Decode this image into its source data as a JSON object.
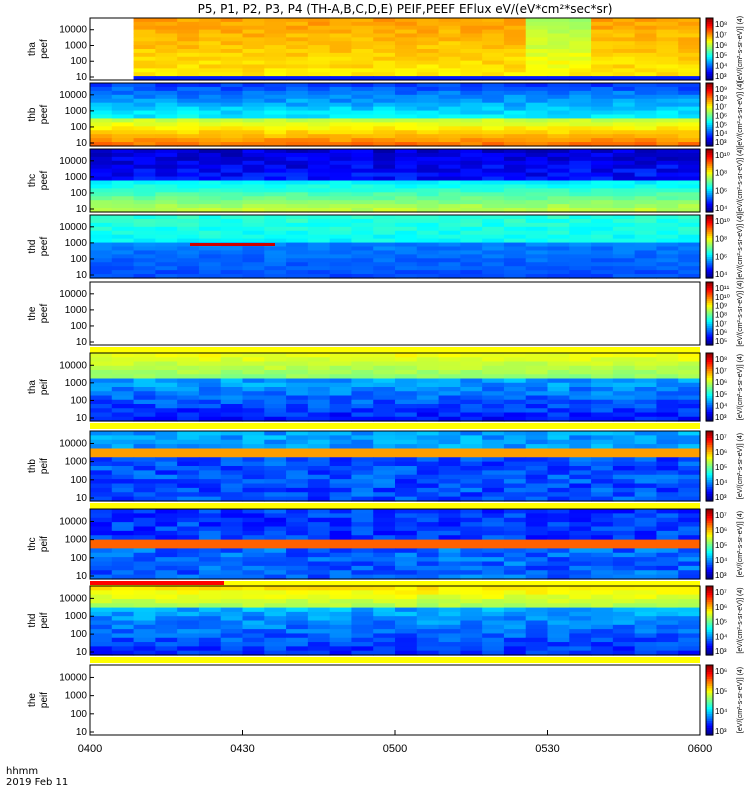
{
  "title": "P5, P1, P2, P3, P4 (TH-A,B,C,D,E) PEIF,PEEF EFlux eV/(eV*cm²*sec*sr)",
  "footer": {
    "time_label": "hhmm",
    "date_label": "2019 Feb 11"
  },
  "chart_data": {
    "type": "heatmap",
    "x_ticks": [
      "0400",
      "0430",
      "0500",
      "0530",
      "0600"
    ],
    "x_range": [
      "04:00",
      "06:00"
    ],
    "y_scale": "log",
    "y_ticks": [
      "10",
      "100",
      "1000",
      "10000"
    ],
    "panels": [
      {
        "label": [
          "tha",
          "peef"
        ],
        "cbar_ticks": [
          "10⁸",
          "10⁷",
          "10⁶",
          "10⁵",
          "10⁴",
          "10³"
        ],
        "cbar_label": "[eV/(cm²-s-sr-eV)] (4)",
        "state": "yellow-to-red spectrum, data gap before 0408, green band near 0530"
      },
      {
        "label": [
          "thb",
          "peef"
        ],
        "cbar_ticks": [
          "10⁹",
          "10⁸",
          "10⁷",
          "10⁶",
          "10⁵",
          "10⁴",
          "10³"
        ],
        "cbar_label": "[eV/(cm²-s-sr-eV)] (4)",
        "state": "intense red at low energy, blue at high energy"
      },
      {
        "label": [
          "thc",
          "peef"
        ],
        "cbar_ticks": [
          "10¹⁰",
          "10⁸",
          "10⁶",
          "10⁴"
        ],
        "cbar_label": "[eV/(cm²-s-sr-eV)] (4)",
        "state": "dark blue high energy, green/yellow low energy"
      },
      {
        "label": [
          "thd",
          "peef"
        ],
        "cbar_ticks": [
          "10¹⁰",
          "10⁸",
          "10⁶",
          "10⁴"
        ],
        "cbar_label": "[eV/(cm²-s-sr-eV)] (4)",
        "state": "green/cyan upper, blue lower, red line near 0425-0435"
      },
      {
        "label": [
          "the",
          "peef"
        ],
        "cbar_ticks": [
          "10¹¹",
          "10¹⁰",
          "10⁹",
          "10⁸",
          "10⁷",
          "10⁶",
          "10⁵"
        ],
        "cbar_label": "[eV/(cm²-s-sr-eV)] (4)",
        "state": "no data"
      },
      {
        "label": [
          "tha",
          "peif"
        ],
        "cbar_ticks": [
          "10⁸",
          "10⁷",
          "10⁶",
          "10⁵",
          "10⁴",
          "10³"
        ],
        "cbar_label": "[eV/(cm²-s-sr-eV)] (4)",
        "state": "yellow/green top, blue mid, dark low"
      },
      {
        "label": [
          "thb",
          "peif"
        ],
        "cbar_ticks": [
          "10⁷",
          "10⁶",
          "10⁵",
          "10⁴",
          "10³"
        ],
        "cbar_label": "[eV/(cm²-s-sr-eV)] (4)",
        "state": "blue with yellow band near 1000 eV"
      },
      {
        "label": [
          "thc",
          "peif"
        ],
        "cbar_ticks": [
          "10⁷",
          "10⁶",
          "10⁵",
          "10⁴",
          "10³"
        ],
        "cbar_label": "[eV/(cm²-s-sr-eV)] (4)",
        "state": "blue with yellow/orange band near 1000 eV"
      },
      {
        "label": [
          "thd",
          "peif"
        ],
        "cbar_ticks": [
          "10⁷",
          "10⁶",
          "10⁵",
          "10⁴",
          "10³"
        ],
        "cbar_label": "[eV/(cm²-s-sr-eV)] (4)",
        "state": "yellow/green top, blue low, red marker line 0400-0423"
      },
      {
        "label": [
          "the",
          "peif"
        ],
        "cbar_ticks": [
          "10⁶",
          "10⁵",
          "10⁴",
          "10³"
        ],
        "cbar_label": "[eV/(cm²-s-sr-eV)] (4)",
        "state": "no data"
      }
    ]
  }
}
